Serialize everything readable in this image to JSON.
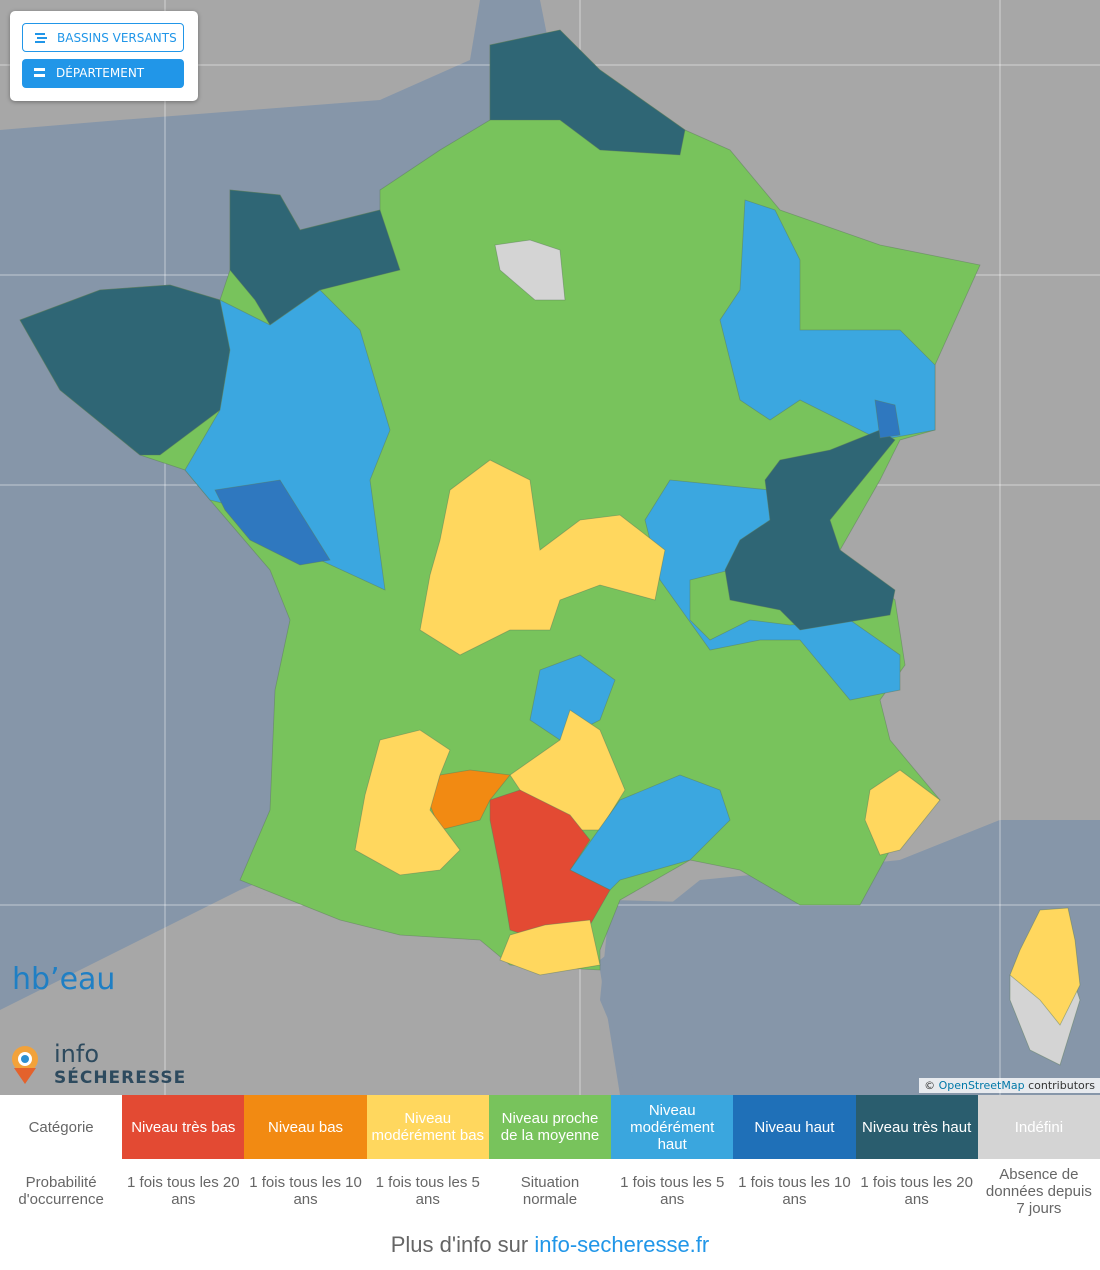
{
  "controls": {
    "buttons": [
      "BASSINS VERSANTS",
      "DÉPARTEMENT"
    ]
  },
  "logos": {
    "hubeau": "hb’eau",
    "info": "info",
    "secheresse": "SÉCHERESSE"
  },
  "attribution": {
    "prefix": "©",
    "link": "OpenStreetMap",
    "suffix": "contributors"
  },
  "legend": {
    "category_label": "Catégorie",
    "occurrence_label": "Probabilité d'occurrence",
    "categories": [
      {
        "name": "Niveau très bas",
        "occurrence": "1 fois tous les 20 ans"
      },
      {
        "name": "Niveau bas",
        "occurrence": "1 fois tous les 10 ans"
      },
      {
        "name": "Niveau modérément bas",
        "occurrence": "1 fois tous les 5 ans"
      },
      {
        "name": "Niveau proche de la moyenne",
        "occurrence": "Situation normale"
      },
      {
        "name": "Niveau modérément haut",
        "occurrence": "1 fois tous les 5 ans"
      },
      {
        "name": "Niveau haut",
        "occurrence": "1 fois tous les 10 ans"
      },
      {
        "name": "Niveau très haut",
        "occurrence": "1 fois tous les 20 ans"
      },
      {
        "name": "Indéfini",
        "occurrence": "Absence de données depuis 7 jours"
      }
    ]
  },
  "footer": {
    "text": "Plus d'info sur",
    "link": "info-secheresse.fr"
  }
}
